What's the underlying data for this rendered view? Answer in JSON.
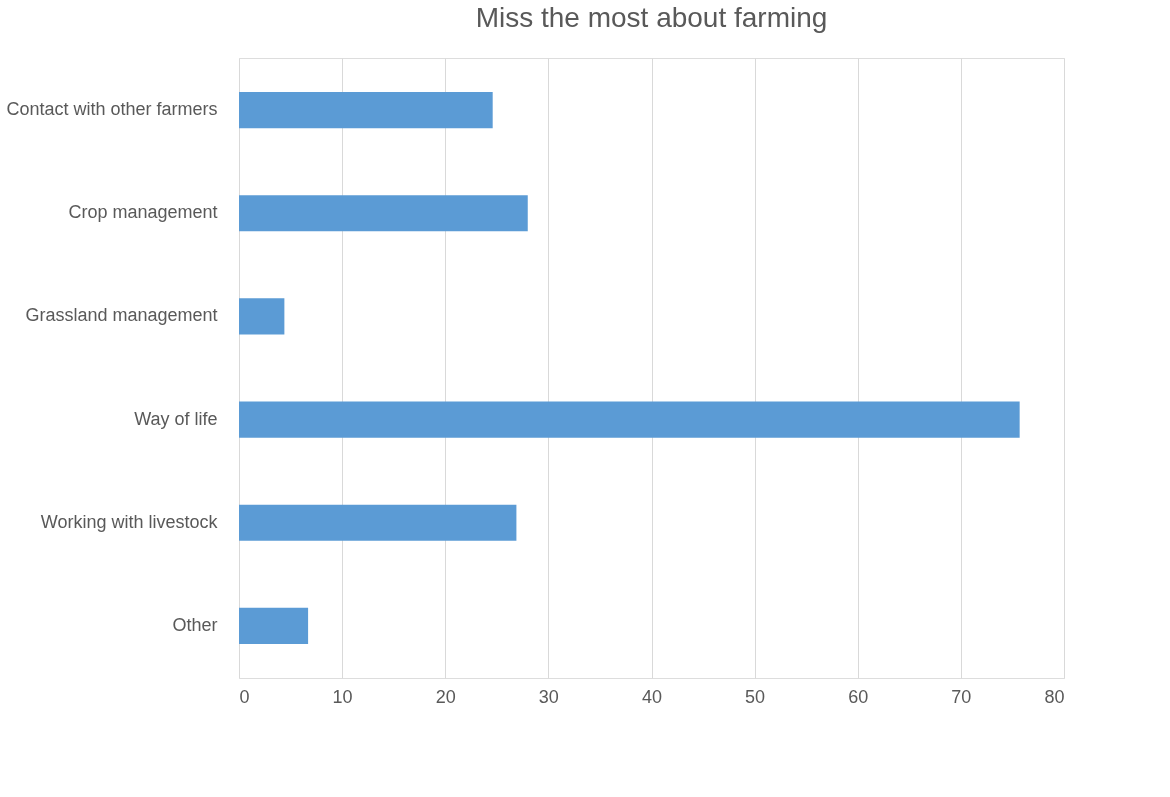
{
  "chart_data": {
    "type": "bar",
    "orientation": "horizontal",
    "title": "Miss the most about farming",
    "categories": [
      "Contact with other farmers",
      "Crop management",
      "Grassland management",
      "Way of life",
      "Working with livestock",
      "Other"
    ],
    "values": [
      24.6,
      28.0,
      4.4,
      75.7,
      26.9,
      6.7
    ],
    "color": "#5b9bd5",
    "xlim": [
      0,
      80
    ],
    "xticks": [
      0,
      10,
      20,
      30,
      40,
      50,
      60,
      70,
      80
    ],
    "grid": "x"
  }
}
